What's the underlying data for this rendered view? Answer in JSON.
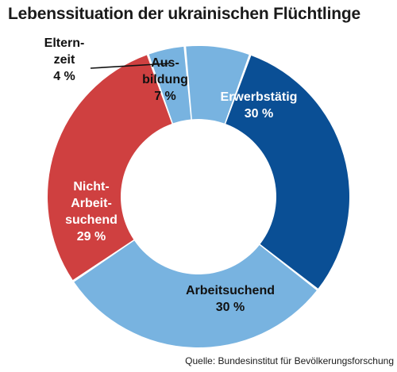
{
  "title": "Lebenssituation der ukrainischen Flüchtlinge",
  "source": "Quelle: Bundesinstitut für Bevölkerungsforschung",
  "chart_data": {
    "type": "pie",
    "variant": "donut",
    "title": "Lebenssituation der ukrainischen Flüchtlinge",
    "slices": [
      {
        "label_lines": [
          "Erwerbstätig"
        ],
        "value": 30,
        "value_label": "30 %",
        "color": "#0a4f95",
        "text_color": "#ffffff"
      },
      {
        "label_lines": [
          "Arbeitsuchend"
        ],
        "value": 30,
        "value_label": "30 %",
        "color": "#78b3e0",
        "text_color": "#111111"
      },
      {
        "label_lines": [
          "Nicht-",
          "Arbeit-",
          "suchend"
        ],
        "value": 29,
        "value_label": "29 %",
        "color": "#cf4040",
        "text_color": "#ffffff"
      },
      {
        "label_lines": [
          "Eltern-",
          "zeit"
        ],
        "value": 4,
        "value_label": "4 %",
        "color": "#78b3e0",
        "text_color": "#111111"
      },
      {
        "label_lines": [
          "Aus-",
          "bildung"
        ],
        "value": 7,
        "value_label": "7 %",
        "color": "#78b3e0",
        "text_color": "#111111"
      }
    ]
  }
}
